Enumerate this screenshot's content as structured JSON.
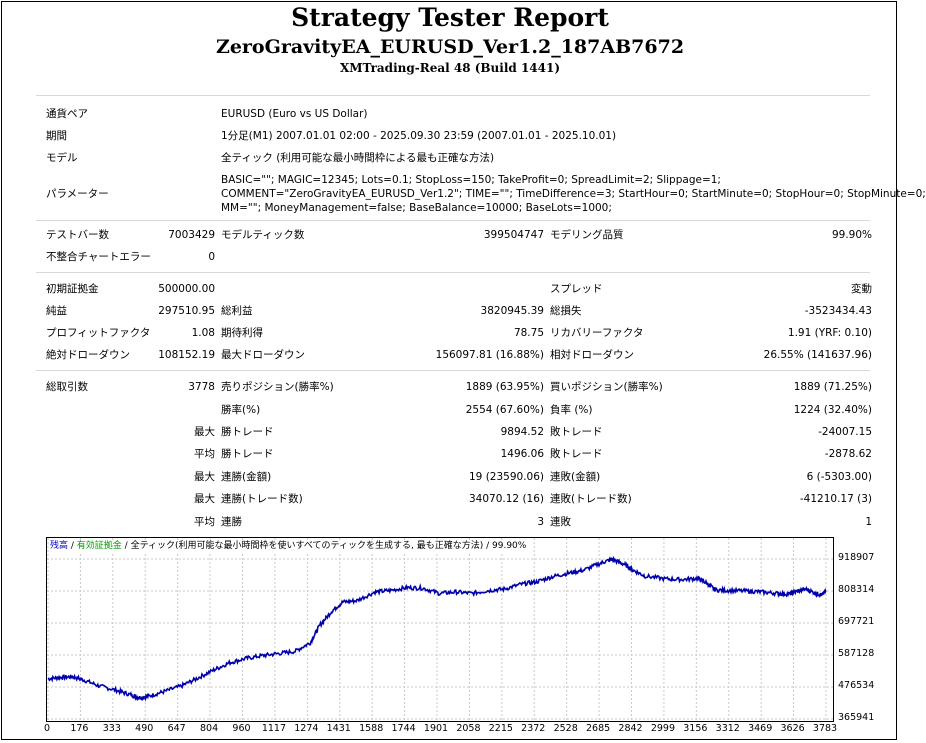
{
  "header": {
    "title": "Strategy Tester Report",
    "subtitle": "ZeroGravityEA_EURUSD_Ver1.2_187AB7672",
    "server": "XMTrading-Real 48 (Build 1441)"
  },
  "info": {
    "symbol_label": "通貨ペア",
    "symbol_value": "EURUSD (Euro vs US Dollar)",
    "period_label": "期間",
    "period_value": "1分足(M1) 2007.01.01 02:00 - 2025.09.30 23:59 (2007.01.01 - 2025.10.01)",
    "model_label": "モデル",
    "model_value": "全ティック (利用可能な最小時間枠による最も正確な方法)",
    "params_label": "パラメーター",
    "params_line1": "BASIC=\"\"; MAGIC=12345; Lots=0.1; StopLoss=150; TakeProfit=0; SpreadLimit=2; Slippage=1;",
    "params_line2": "COMMENT=\"ZeroGravityEA_EURUSD_Ver1.2\"; TIME=\"\"; TimeDifference=3; StartHour=0; StartMinute=0; StopHour=0; StopMinute=0;",
    "params_line3": "MM=\"\"; MoneyManagement=false; BaseBalance=10000; BaseLots=1000;"
  },
  "stats": {
    "bars_label": "テストバー数",
    "bars_value": "7003429",
    "ticks_label": "モデルティック数",
    "ticks_value": "399504747",
    "quality_label": "モデリング品質",
    "quality_value": "99.90%",
    "mismatch_label": "不整合チャートエラー",
    "mismatch_value": "0",
    "deposit_label": "初期証拠金",
    "deposit_value": "500000.00",
    "spread_label": "スプレッド",
    "spread_value": "変動",
    "net_label": "純益",
    "net_value": "297510.95",
    "gross_profit_label": "総利益",
    "gross_profit_value": "3820945.39",
    "gross_loss_label": "総損失",
    "gross_loss_value": "-3523434.43",
    "pf_label": "プロフィットファクタ",
    "pf_value": "1.08",
    "payoff_label": "期待利得",
    "payoff_value": "78.75",
    "rf_label": "リカバリーファクタ",
    "rf_value": "1.91 (YRF: 0.10)",
    "abs_dd_label": "絶対ドローダウン",
    "abs_dd_value": "108152.19",
    "max_dd_label": "最大ドローダウン",
    "max_dd_value": "156097.81 (16.88%)",
    "rel_dd_label": "相対ドローダウン",
    "rel_dd_value": "26.55% (141637.96)",
    "trades_label": "総取引数",
    "trades_value": "3778",
    "short_label": "売りポジション(勝率%)",
    "short_value": "1889 (63.95%)",
    "long_label": "買いポジション(勝率%)",
    "long_value": "1889 (71.25%)",
    "winrate_label": "勝率(%)",
    "winrate_value": "2554 (67.60%)",
    "lossrate_label": "負率 (%)",
    "lossrate_value": "1224 (32.40%)",
    "max_label": "最大",
    "avg_label": "平均",
    "win_trade_label": "勝トレード",
    "loss_trade_label": "敗トレード",
    "max_win_value": "9894.52",
    "max_loss_value": "-24007.15",
    "avg_win_value": "1496.06",
    "avg_loss_value": "-2878.62",
    "consec_win_amt_label": "連勝(金額)",
    "consec_win_amt_value": "19 (23590.06)",
    "consec_loss_amt_label": "連敗(金額)",
    "consec_loss_amt_value": "6 (-5303.00)",
    "consec_win_trd_label": "連勝(トレード数)",
    "consec_win_trd_value": "34070.12 (16)",
    "consec_loss_trd_label": "連敗(トレード数)",
    "consec_loss_trd_value": "-41210.17 (3)",
    "consec_win_label": "連勝",
    "consec_win_value": "3",
    "consec_loss_label": "連敗",
    "consec_loss_value": "1"
  },
  "chart_legend": {
    "balance": "残高",
    "sep1": " / ",
    "equity": "有効証拠金",
    "sep2": " / ",
    "model": "全ティック(利用可能な最小時間枠を使いすべてのティックを生成する, 最も正確な方法)",
    "sep3": " / ",
    "quality": "99.90%"
  },
  "chart_data": {
    "type": "line",
    "x_tick_labels": [
      "0",
      "176",
      "333",
      "490",
      "647",
      "804",
      "960",
      "1117",
      "1274",
      "1431",
      "1588",
      "1744",
      "1901",
      "2058",
      "2215",
      "2372",
      "2528",
      "2685",
      "2842",
      "2999",
      "3156",
      "3312",
      "3469",
      "3626",
      "3783"
    ],
    "y_tick_labels": [
      "918907",
      "808314",
      "697721",
      "587128",
      "476534",
      "365941"
    ],
    "xlim": [
      0,
      3778
    ],
    "ylim": [
      365941,
      918907
    ],
    "series": [
      {
        "name": "残高",
        "color": "#0000aa",
        "x": [
          0,
          60,
          120,
          176,
          250,
          333,
          400,
          440,
          490,
          560,
          647,
          720,
          804,
          880,
          960,
          1040,
          1117,
          1200,
          1274,
          1320,
          1380,
          1431,
          1500,
          1588,
          1660,
          1744,
          1820,
          1901,
          1980,
          2058,
          2140,
          2215,
          2300,
          2372,
          2450,
          2528,
          2600,
          2685,
          2740,
          2800,
          2842,
          2900,
          2999,
          3080,
          3156,
          3200,
          3240,
          3312,
          3400,
          3469,
          3540,
          3600,
          3626,
          3680,
          3730,
          3760,
          3778
        ],
        "y": [
          505000,
          510000,
          512000,
          500000,
          480000,
          465000,
          450000,
          440000,
          445000,
          460000,
          480000,
          505000,
          535000,
          560000,
          575000,
          585000,
          592000,
          600000,
          630000,
          690000,
          740000,
          770000,
          775000,
          805000,
          810000,
          820000,
          818000,
          800000,
          805000,
          800000,
          810000,
          815000,
          832000,
          840000,
          858000,
          870000,
          880000,
          905000,
          918000,
          900000,
          880000,
          860000,
          850000,
          848000,
          852000,
          835000,
          812000,
          810000,
          808000,
          805000,
          800000,
          798000,
          805000,
          815000,
          800000,
          795000,
          808000
        ]
      }
    ]
  }
}
